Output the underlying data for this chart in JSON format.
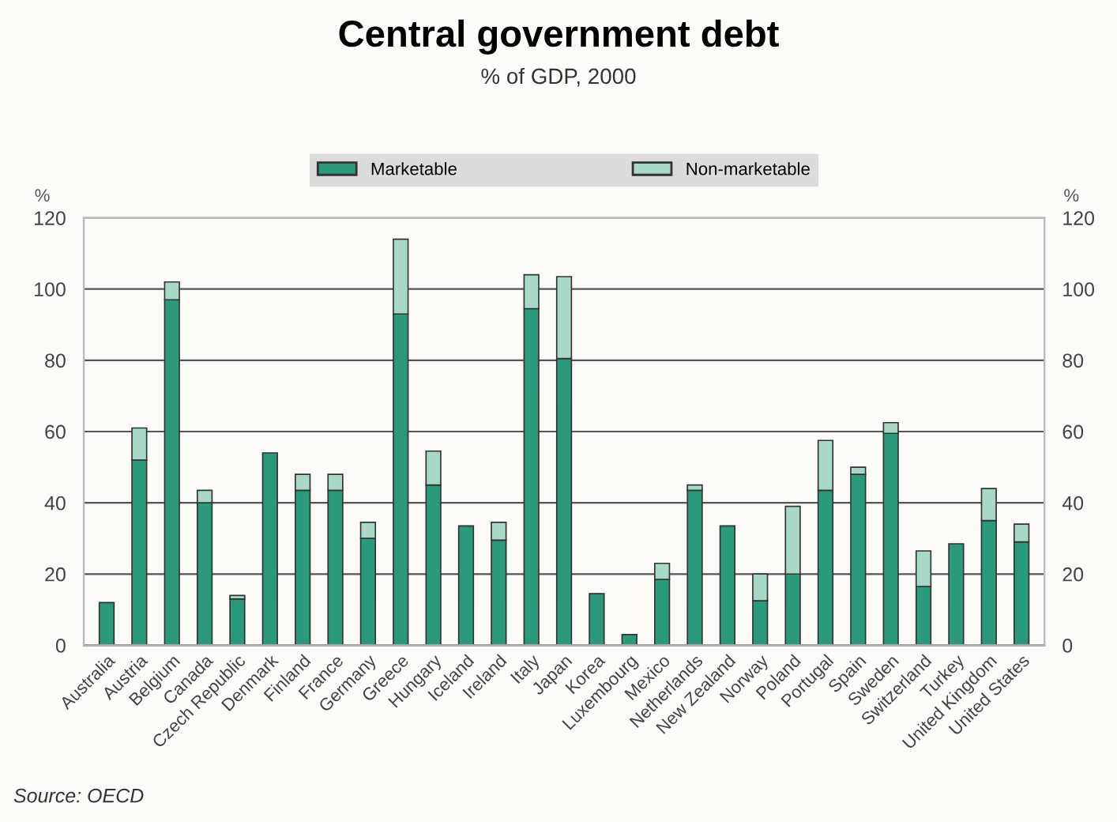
{
  "chart_data": {
    "type": "bar",
    "title": "Central government debt",
    "subtitle": "% of GDP, 2000",
    "ylabel": "%",
    "y2label": "%",
    "categories": [
      "Australia",
      "Austria",
      "Belgium",
      "Canada",
      "Czech Republic",
      "Denmark",
      "Finland",
      "France",
      "Germany",
      "Greece",
      "Hungary",
      "Iceland",
      "Ireland",
      "Italy",
      "Japan",
      "Korea",
      "Luxembourg",
      "Mexico",
      "Netherlands",
      "New Zealand",
      "Norway",
      "Poland",
      "Portugal",
      "Spain",
      "Sweden",
      "Switzerland",
      "Turkey",
      "United Kingdom",
      "United States"
    ],
    "series": [
      {
        "name": "Marketable",
        "color": "#2a9a7a",
        "values": [
          12,
          52,
          97,
          40,
          13,
          54,
          43.5,
          43.5,
          30,
          93,
          45,
          33.5,
          29.5,
          94.5,
          80.5,
          14.5,
          3,
          18.5,
          43.5,
          33.5,
          12.5,
          20,
          43.5,
          48,
          59.5,
          16.5,
          28.5,
          35,
          29
        ]
      },
      {
        "name": "Non-marketable",
        "color": "#a8d8c6",
        "values": [
          null,
          9,
          5,
          3.5,
          1,
          null,
          4.5,
          4.5,
          4.5,
          21,
          9.5,
          null,
          5,
          9.5,
          23,
          null,
          null,
          4.5,
          1.5,
          null,
          7.5,
          19,
          14,
          2,
          3,
          10,
          null,
          9,
          5
        ]
      }
    ],
    "stacked": true,
    "ylim": [
      0,
      120
    ],
    "yticks": [
      0,
      20,
      40,
      60,
      80,
      100,
      120
    ],
    "y2lim": [
      0,
      120
    ],
    "y2ticks": [
      0,
      20,
      40,
      60,
      80,
      100,
      120
    ],
    "grid": "y",
    "legend": "top",
    "annotations": [
      "Source: OECD"
    ]
  }
}
